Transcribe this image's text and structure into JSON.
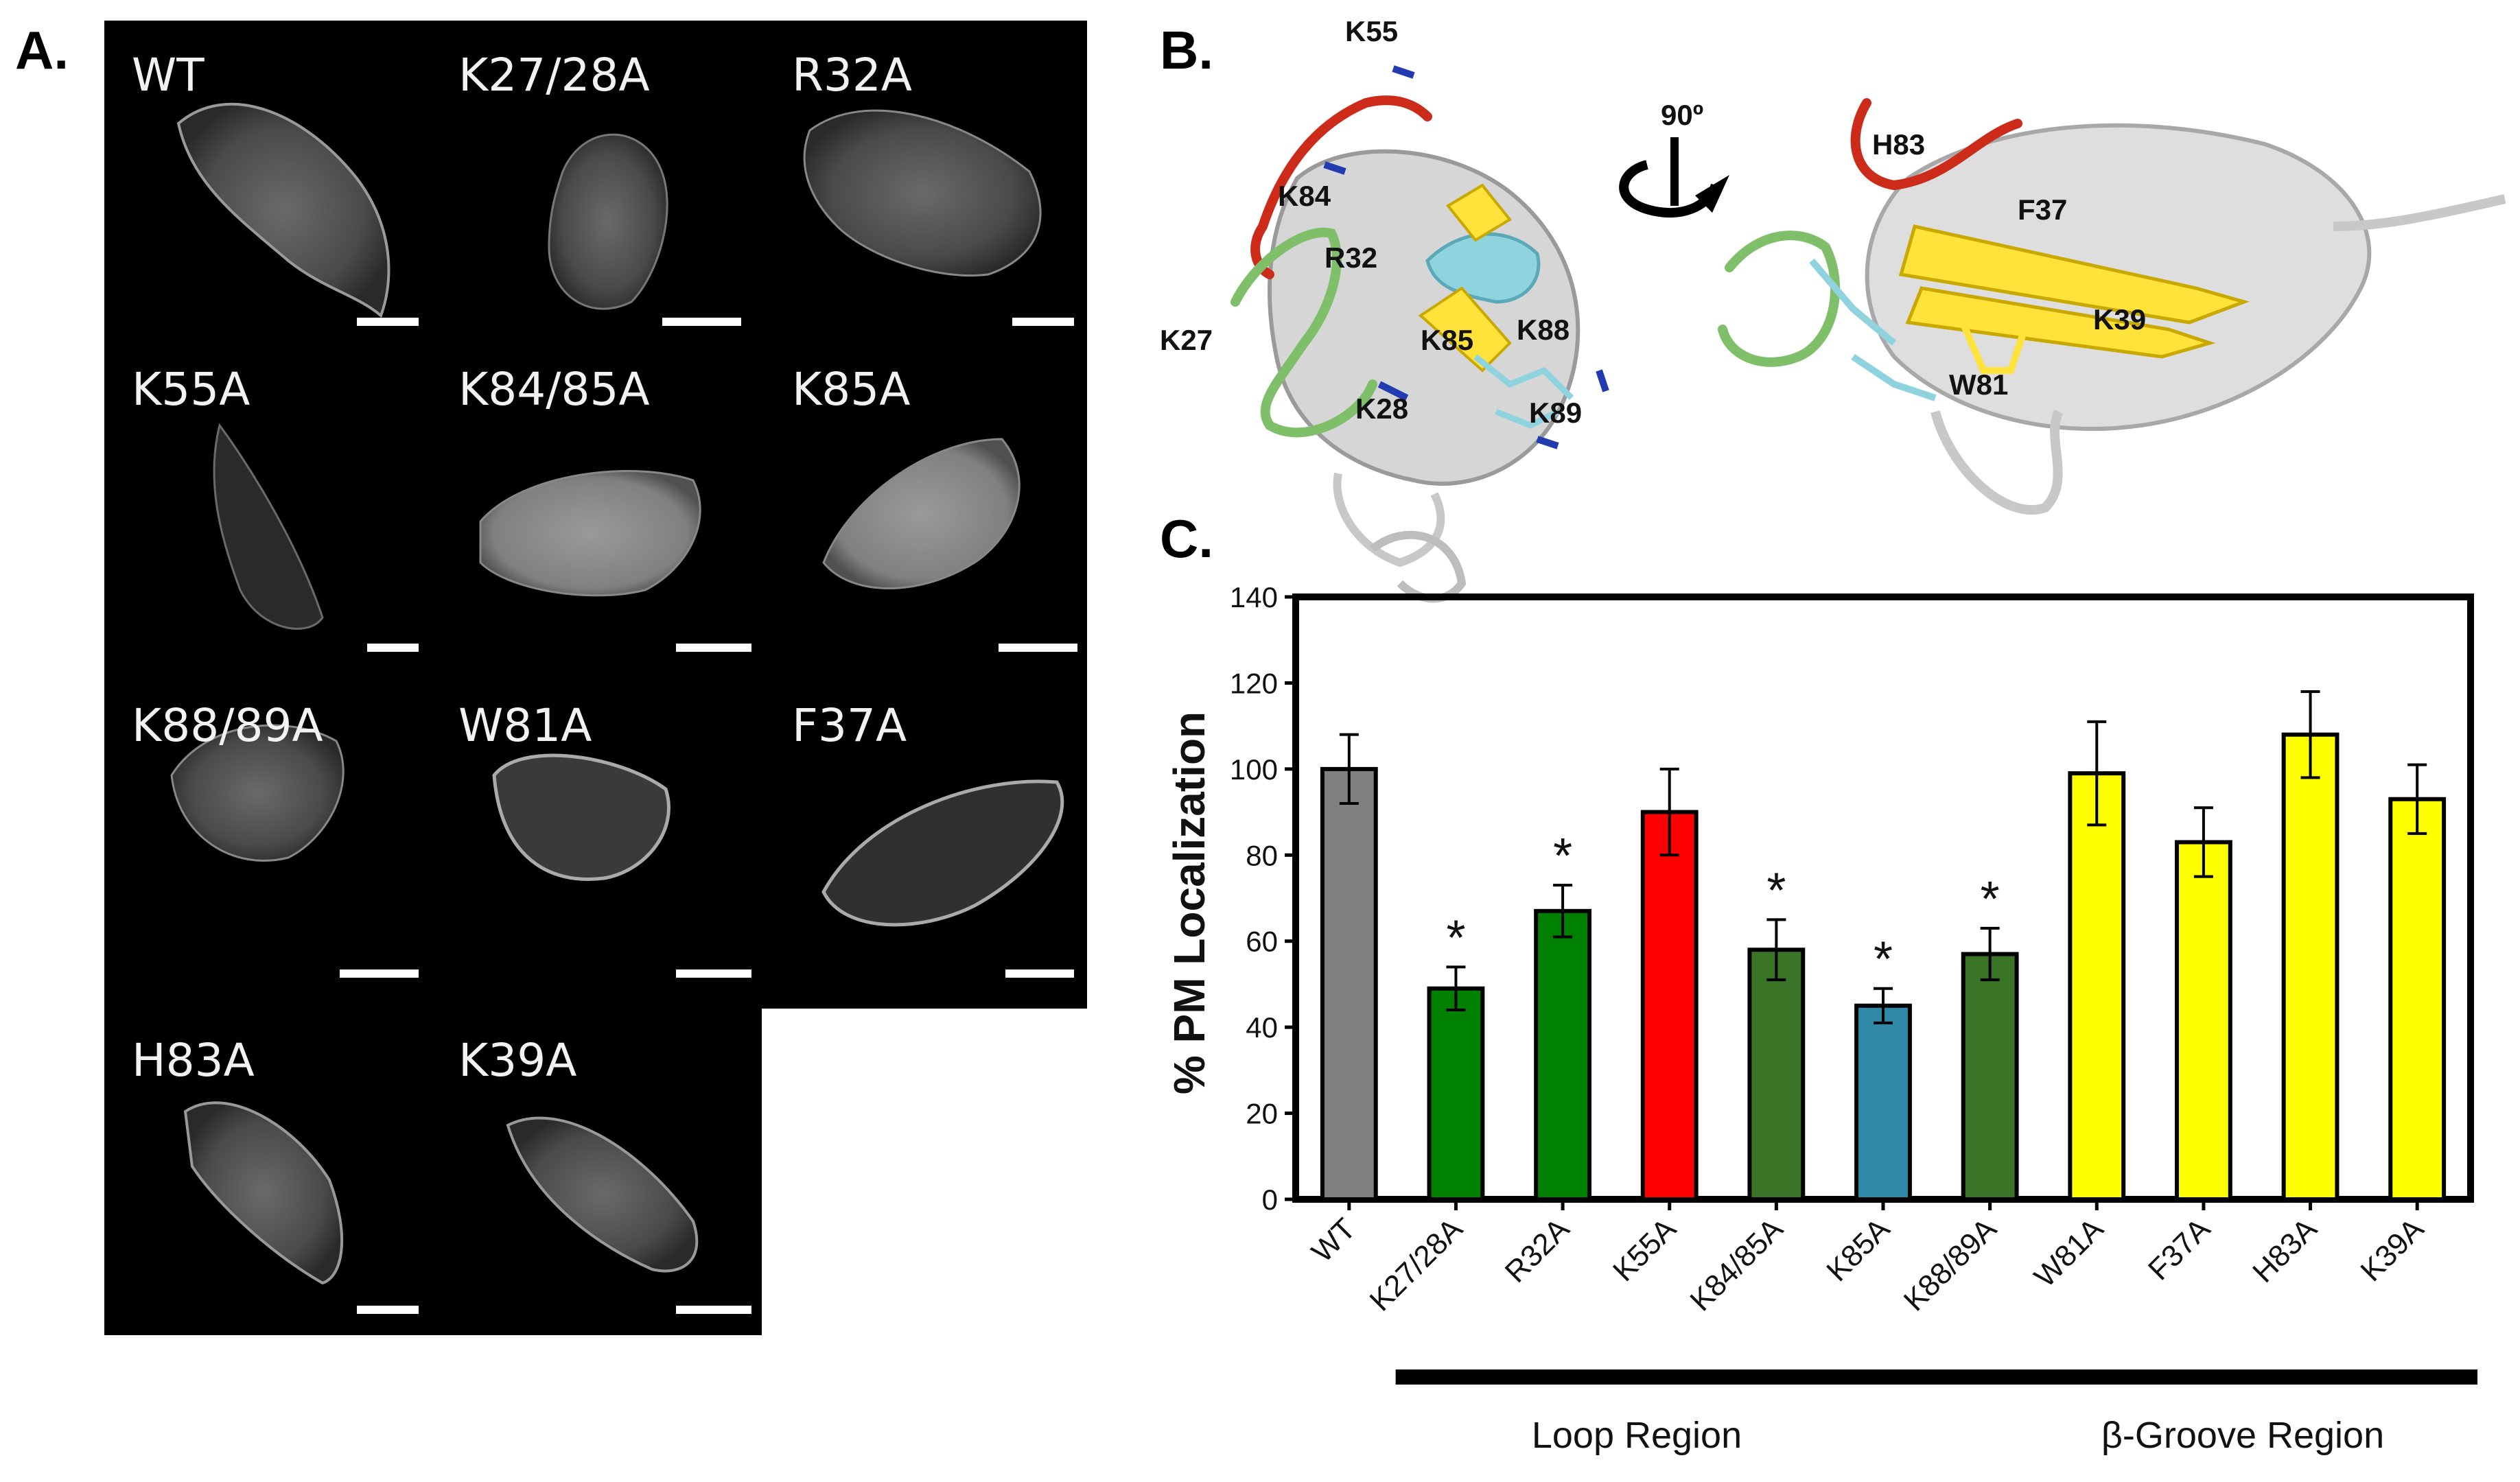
{
  "panels": {
    "a_label": "A.",
    "b_label": "B.",
    "c_label": "C."
  },
  "microscopy": {
    "cells": [
      {
        "label": "WT"
      },
      {
        "label": "K27/28A"
      },
      {
        "label": "R32A"
      },
      {
        "label": "K55A"
      },
      {
        "label": "K84/85A"
      },
      {
        "label": "K85A"
      },
      {
        "label": "K88/89A"
      },
      {
        "label": "W81A"
      },
      {
        "label": "F37A"
      },
      {
        "label": "H83A"
      },
      {
        "label": "K39A"
      }
    ]
  },
  "structure": {
    "rotation_label": "90º",
    "left_residues": [
      "K55",
      "K84",
      "R32",
      "K27",
      "K85",
      "K88",
      "K28",
      "K89"
    ],
    "right_residues": [
      "H83",
      "F37",
      "K39",
      "W81"
    ]
  },
  "colors": {
    "gray": "#808080",
    "green": "#008000",
    "dark_green": "#3a7426",
    "red": "#ff0000",
    "teal": "#2e88a6",
    "yellow": "#ffff00",
    "loop_red": "#cc2b1a",
    "loop_green": "#7fbf6a",
    "cyan": "#8fd3df"
  },
  "chart_data": {
    "type": "bar",
    "ylabel": "% PM Localization",
    "xlabel": "",
    "ylim": [
      0,
      140
    ],
    "yticks": [
      0,
      20,
      40,
      60,
      80,
      100,
      120,
      140
    ],
    "categories": [
      "WT",
      "K27/28A",
      "R32A",
      "K55A",
      "K84/85A",
      "K85A",
      "K88/89A",
      "W81A",
      "F37A",
      "H83A",
      "K39A"
    ],
    "values": [
      100,
      49,
      67,
      90,
      58,
      45,
      57,
      99,
      83,
      108,
      93
    ],
    "errors": [
      8,
      5,
      6,
      10,
      7,
      4,
      6,
      12,
      8,
      10,
      8
    ],
    "bar_colors": [
      "#808080",
      "#008000",
      "#008000",
      "#ff0000",
      "#3a7426",
      "#2e88a6",
      "#3a7426",
      "#ffff00",
      "#ffff00",
      "#ffff00",
      "#ffff00"
    ],
    "significance": [
      "",
      "*",
      "*",
      "",
      "*",
      "*",
      "*",
      "",
      "",
      "",
      ""
    ],
    "regions": [
      {
        "label": "Loop Region",
        "from": "K27/28A",
        "to": "K88/89A"
      },
      {
        "label": "β-Groove Region",
        "from": "W81A",
        "to": "K39A"
      }
    ],
    "grid": false
  }
}
